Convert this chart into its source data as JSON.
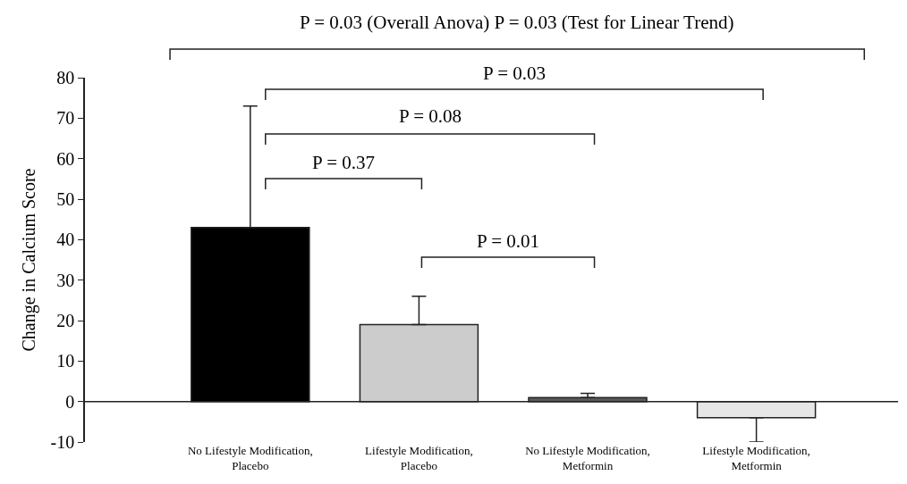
{
  "chart_data": {
    "type": "bar",
    "categories": [
      "No Lifestyle Modification,\nPlacebo",
      "Lifestyle Modification,\nPlacebo",
      "No Lifestyle Modification,\nMetformin",
      "Lifestyle Modification,\nMetformin"
    ],
    "values": [
      43,
      19,
      1,
      -4
    ],
    "colors": [
      "#000000",
      "#cccccc",
      "#595959",
      "#e6e6e6"
    ],
    "errors": [
      [
        43,
        73
      ],
      [
        19,
        26
      ],
      [
        1,
        2
      ],
      [
        -10,
        -4
      ]
    ],
    "ref_lines": [
      {
        "axis": "y",
        "value": 0,
        "color": "#222222"
      }
    ],
    "ylabel": "Change in Calcium Score",
    "ylim": [
      -10,
      80
    ],
    "yticks": [
      -10,
      0,
      10,
      20,
      30,
      40,
      50,
      60,
      70,
      80
    ],
    "grid": false,
    "legend": false,
    "annotations": [
      "P = 0.03 (Overall Anova) P = 0.03 (Test for Linear Trend)",
      "P = 0.03",
      "P = 0.08",
      "P = 0.37",
      "P = 0.01"
    ]
  }
}
